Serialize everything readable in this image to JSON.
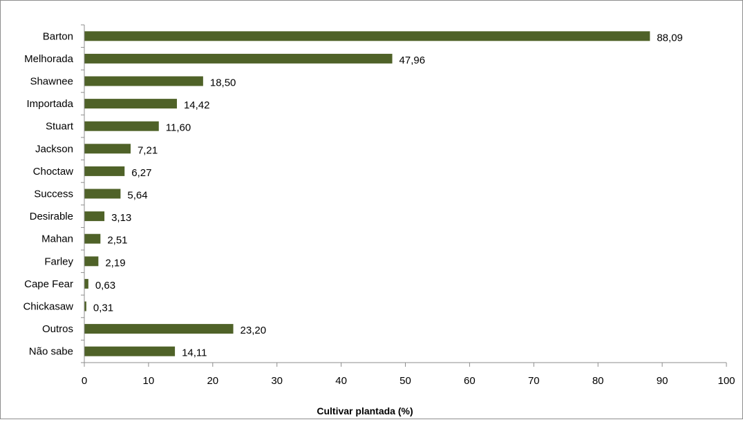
{
  "chart_data": {
    "type": "bar",
    "orientation": "horizontal",
    "categories": [
      "Barton",
      "Melhorada",
      "Shawnee",
      "Importada",
      "Stuart",
      "Jackson",
      "Choctaw",
      "Success",
      "Desirable",
      "Mahan",
      "Farley",
      "Cape Fear",
      "Chickasaw",
      "Outros",
      "Não sabe"
    ],
    "values": [
      88.09,
      47.96,
      18.5,
      14.42,
      11.6,
      7.21,
      6.27,
      5.64,
      3.13,
      2.51,
      2.19,
      0.63,
      0.31,
      23.2,
      14.11
    ],
    "value_labels": [
      "88,09",
      "47,96",
      "18,50",
      "14,42",
      "11,60",
      "7,21",
      "6,27",
      "5,64",
      "3,13",
      "2,51",
      "2,19",
      "0,63",
      "0,31",
      "23,20",
      "14,11"
    ],
    "xlabel": "Cultivar plantada (%)",
    "ylabel": "",
    "xlim": [
      0,
      100
    ],
    "xticks": [
      "0",
      "10",
      "20",
      "30",
      "40",
      "50",
      "60",
      "70",
      "80",
      "90",
      "100"
    ],
    "grid": false,
    "legend": "none",
    "bar_color": "#4f6228"
  }
}
